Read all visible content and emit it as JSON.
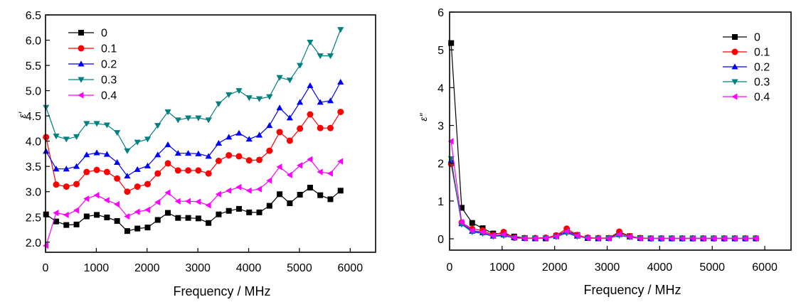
{
  "chart_data": [
    {
      "type": "line",
      "xlabel": "Frequency / MHz",
      "ylabel": "ε′",
      "xlim": [
        0,
        6500
      ],
      "ylim": [
        1.8,
        6.5
      ],
      "xticks": [
        0,
        1000,
        2000,
        3000,
        4000,
        5000,
        6000
      ],
      "yticks": [
        2.0,
        2.5,
        3.0,
        3.5,
        4.0,
        4.5,
        5.0,
        5.5,
        6.0,
        6.5
      ],
      "ytick_labels": [
        "2.0",
        "2.5",
        "3.0",
        "3.5",
        "4.0",
        "4.5",
        "5.0",
        "5.5",
        "6.0",
        "6.5"
      ],
      "legend_position": "top-left",
      "x": [
        10,
        210,
        410,
        610,
        810,
        1010,
        1210,
        1410,
        1610,
        1810,
        2010,
        2210,
        2410,
        2610,
        2810,
        3010,
        3210,
        3410,
        3610,
        3810,
        4010,
        4210,
        4410,
        4610,
        4810,
        5010,
        5210,
        5410,
        5610,
        5810
      ],
      "series": [
        {
          "name": "0",
          "color": "#000000",
          "marker": "square",
          "values": [
            2.55,
            2.41,
            2.34,
            2.35,
            2.51,
            2.54,
            2.49,
            2.42,
            2.22,
            2.27,
            2.29,
            2.44,
            2.58,
            2.48,
            2.48,
            2.47,
            2.38,
            2.55,
            2.62,
            2.66,
            2.59,
            2.59,
            2.72,
            2.95,
            2.77,
            2.94,
            3.08,
            2.93,
            2.85,
            3.02
          ]
        },
        {
          "name": "0.1",
          "color": "#ff0000",
          "marker": "circle",
          "values": [
            4.08,
            3.14,
            3.1,
            3.15,
            3.39,
            3.43,
            3.39,
            3.26,
            3.0,
            3.1,
            3.15,
            3.36,
            3.56,
            3.42,
            3.42,
            3.42,
            3.36,
            3.61,
            3.72,
            3.7,
            3.62,
            3.63,
            3.81,
            4.18,
            4.01,
            4.25,
            4.53,
            4.26,
            4.26,
            4.58
          ]
        },
        {
          "name": "0.2",
          "color": "#0000ff",
          "marker": "triangle-up",
          "values": [
            3.8,
            3.45,
            3.45,
            3.5,
            3.73,
            3.77,
            3.74,
            3.58,
            3.31,
            3.44,
            3.51,
            3.73,
            3.93,
            3.76,
            3.76,
            3.75,
            3.7,
            3.96,
            4.08,
            4.16,
            4.04,
            4.12,
            4.31,
            4.66,
            4.46,
            4.77,
            5.1,
            4.77,
            4.8,
            5.17
          ]
        },
        {
          "name": "0.3",
          "color": "#008080",
          "marker": "triangle-down",
          "values": [
            4.67,
            4.1,
            4.04,
            4.09,
            4.35,
            4.35,
            4.32,
            4.17,
            3.81,
            3.98,
            4.04,
            4.31,
            4.58,
            4.42,
            4.46,
            4.46,
            4.42,
            4.74,
            4.92,
            5.0,
            4.86,
            4.84,
            4.88,
            5.26,
            5.21,
            5.5,
            5.96,
            5.69,
            5.69,
            6.21
          ]
        },
        {
          "name": "0.4",
          "color": "#ff00ff",
          "marker": "triangle-left",
          "values": [
            1.93,
            2.58,
            2.54,
            2.63,
            2.86,
            2.93,
            2.83,
            2.75,
            2.51,
            2.6,
            2.64,
            2.79,
            2.98,
            2.81,
            2.81,
            2.8,
            2.73,
            2.95,
            3.02,
            3.09,
            3.02,
            3.05,
            3.22,
            3.49,
            3.33,
            3.52,
            3.64,
            3.39,
            3.36,
            3.6
          ]
        }
      ]
    },
    {
      "type": "line",
      "xlabel": "Frequency / MHz",
      "ylabel": "ε″",
      "xlim": [
        0,
        6500
      ],
      "ylim": [
        -0.3,
        6
      ],
      "xticks": [
        0,
        1000,
        2000,
        3000,
        4000,
        5000,
        6000
      ],
      "yticks": [
        0,
        1,
        2,
        3,
        4,
        5,
        6
      ],
      "ytick_labels": [
        "0",
        "1",
        "2",
        "3",
        "4",
        "5",
        "6"
      ],
      "legend_position": "top-right",
      "x": [
        30,
        230,
        430,
        630,
        830,
        1030,
        1230,
        1430,
        1630,
        1830,
        2030,
        2230,
        2430,
        2630,
        2830,
        3030,
        3230,
        3430,
        3630,
        3830,
        4030,
        4230,
        4430,
        4630,
        4830,
        5030,
        5230,
        5430,
        5630,
        5830
      ],
      "series": [
        {
          "name": "0",
          "color": "#000000",
          "marker": "square",
          "values": [
            5.18,
            0.82,
            0.42,
            0.28,
            0.14,
            0.14,
            0.06,
            0.02,
            0.01,
            0.01,
            0.08,
            0.21,
            0.1,
            0.02,
            0.01,
            0.02,
            0.16,
            0.07,
            0.02,
            0.01,
            0.01,
            0.01,
            0.01,
            0.01,
            0.01,
            0.01,
            0.01,
            0.01,
            0.01,
            0.01
          ]
        },
        {
          "name": "0.1",
          "color": "#ff0000",
          "marker": "circle",
          "values": [
            1.98,
            0.43,
            0.26,
            0.22,
            0.1,
            0.18,
            0.03,
            0.02,
            0.02,
            0.03,
            0.09,
            0.27,
            0.1,
            0.03,
            0.02,
            0.02,
            0.19,
            0.07,
            0.02,
            0.01,
            0.01,
            0.01,
            0.01,
            0.01,
            0.01,
            0.01,
            0.01,
            0.01,
            0.01,
            0.01
          ]
        },
        {
          "name": "0.2",
          "color": "#0000ff",
          "marker": "triangle-up",
          "values": [
            2.08,
            0.4,
            0.2,
            0.16,
            0.07,
            0.1,
            0.03,
            0.01,
            0.01,
            0.02,
            0.06,
            0.18,
            0.07,
            0.02,
            0.01,
            0.01,
            0.11,
            0.05,
            0.01,
            0.01,
            0.01,
            0.01,
            0.01,
            0.01,
            0.01,
            0.01,
            0.01,
            0.01,
            0.01,
            0.01
          ]
        },
        {
          "name": "0.3",
          "color": "#008080",
          "marker": "triangle-down",
          "values": [
            2.12,
            0.38,
            0.18,
            0.14,
            0.06,
            0.08,
            0.02,
            0.01,
            0.01,
            0.02,
            0.05,
            0.15,
            0.06,
            0.02,
            0.01,
            0.01,
            0.09,
            0.04,
            0.01,
            0.01,
            0.01,
            0.01,
            0.01,
            0.01,
            0.01,
            0.01,
            0.01,
            0.01,
            0.01,
            0.01
          ]
        },
        {
          "name": "0.4",
          "color": "#ff00ff",
          "marker": "triangle-left",
          "values": [
            2.58,
            0.44,
            0.22,
            0.18,
            0.08,
            0.12,
            0.03,
            0.01,
            0.01,
            0.02,
            0.06,
            0.2,
            0.08,
            0.02,
            0.01,
            0.01,
            0.12,
            0.05,
            0.01,
            0.01,
            0.01,
            0.01,
            0.01,
            0.01,
            0.01,
            0.01,
            0.01,
            0.01,
            0.01,
            0.01
          ]
        }
      ]
    }
  ]
}
